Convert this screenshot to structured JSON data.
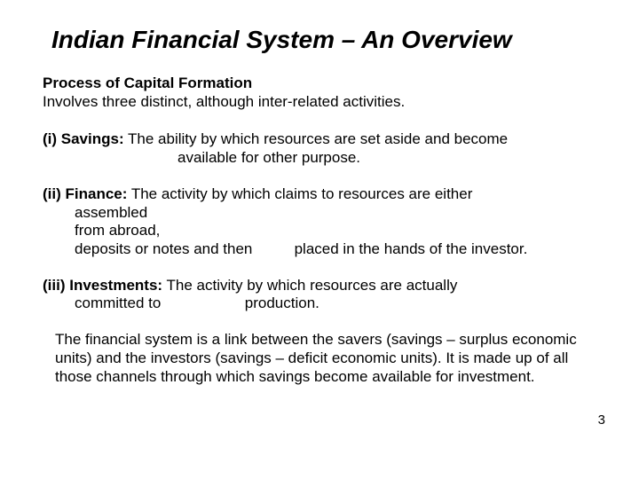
{
  "title": "Indian Financial System – An Overview",
  "subhead": "Process of Capital Formation",
  "lead": "Involves three distinct, although inter-related activities.",
  "items": {
    "savings": {
      "label": "(i) Savings:",
      "line1_rest": " The ability by which resources are set aside and become",
      "line2": "available for other purpose."
    },
    "finance": {
      "label": "(ii) Finance:",
      "line1_rest": " The activity by which claims to resources are either",
      "line2": "assembled",
      "line3": "from abroad,",
      "line4": "deposits or notes and then          placed in the hands of the investor."
    },
    "investments": {
      "label": "(iii) Investments:",
      "line1_rest": " The activity by which resources are actually",
      "line2": "committed to                    production."
    }
  },
  "closing": "The financial system is a link between the savers (savings – surplus economic units) and the investors (savings – deficit economic units). It is made up of all those channels through which savings become available for investment.",
  "page_number": "3"
}
